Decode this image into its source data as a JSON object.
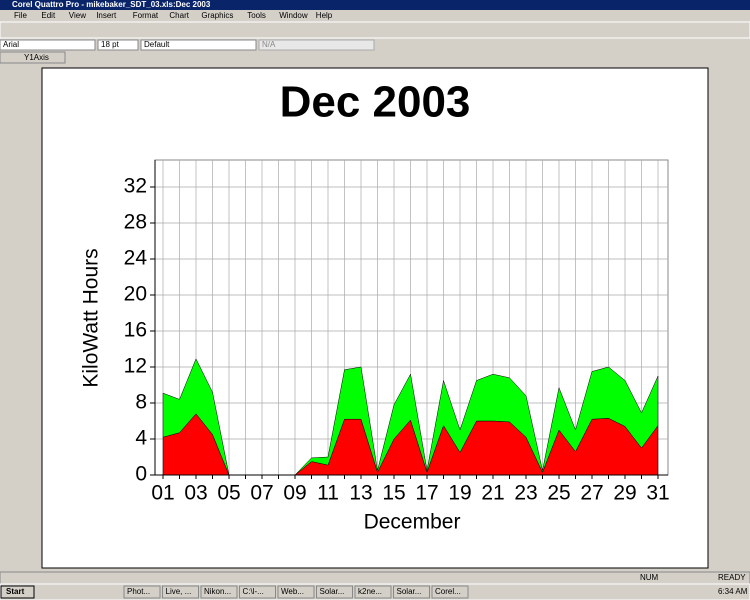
{
  "window": {
    "title": "Corel Quattro Pro - mikebaker_SDT_03.xls:Dec 2003",
    "menu": [
      "File",
      "Edit",
      "View",
      "Insert",
      "Format",
      "Chart",
      "Graphics",
      "Tools",
      "Window",
      "Help"
    ],
    "font": "Arial",
    "size": "18 pt",
    "style": "Default",
    "field": "N/A",
    "selection": "Y1Axis"
  },
  "chart_data": {
    "type": "stacked-area",
    "title": "Dec 2003",
    "x_label": "December",
    "y_label": "KiloWatt Hours",
    "categories": [
      "01",
      null,
      "03",
      null,
      "05",
      null,
      "07",
      null,
      "09",
      null,
      "11",
      null,
      "13",
      null,
      "15",
      null,
      "17",
      null,
      "19",
      null,
      "21",
      null,
      "23",
      null,
      "25",
      null,
      "27",
      null,
      "29",
      null,
      "31"
    ],
    "series": [
      {
        "color": "#ff0000",
        "values": [
          4.2,
          4.7,
          6.8,
          4.5,
          0,
          0,
          0,
          0,
          0,
          1.5,
          1.1,
          6.2,
          6.2,
          0.3,
          4.0,
          6.1,
          0.3,
          5.5,
          2.5,
          6.0,
          6.0,
          5.9,
          4.2,
          0.3,
          5.0,
          2.6,
          6.2,
          6.3,
          5.4,
          3.0,
          5.5
        ]
      },
      {
        "color": "#00ff00",
        "values": [
          4.9,
          3.7,
          6.1,
          4.7,
          0,
          0,
          0,
          0,
          0,
          0.4,
          0.9,
          5.5,
          5.8,
          0.2,
          3.8,
          5.1,
          0.2,
          5.0,
          2.5,
          4.5,
          5.2,
          4.9,
          4.6,
          0.2,
          4.7,
          2.4,
          5.3,
          5.7,
          5.1,
          3.9,
          5.5
        ]
      }
    ],
    "ylim": [
      0,
      35
    ],
    "yticks": [
      0,
      4,
      8,
      12,
      16,
      20,
      24,
      28,
      32
    ],
    "grid": true
  },
  "status": {
    "num": "NUM",
    "mode": "READY"
  },
  "taskbar": {
    "start": "Start",
    "tasks": [
      "Phot...",
      "Live, ...",
      "Nikon...",
      "C:\\l-...",
      "Web...",
      "Solar...",
      "k2ne...",
      "Solar...",
      "Corel..."
    ],
    "time": "6:34 AM"
  }
}
